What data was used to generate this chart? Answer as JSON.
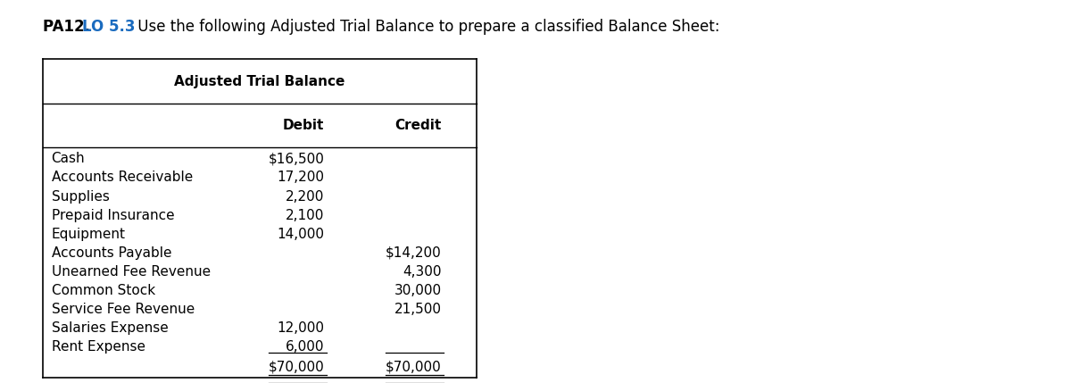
{
  "title_prefix": "PA12. ",
  "title_lo": "LO 5.3",
  "title_suffix": " Use the following Adjusted Trial Balance to prepare a classified Balance Sheet:",
  "table_title": "Adjusted Trial Balance",
  "col_headers": [
    "",
    "Debit",
    "Credit"
  ],
  "rows": [
    {
      "label": "Cash",
      "debit": "$16,500",
      "credit": ""
    },
    {
      "label": "Accounts Receivable",
      "debit": "17,200",
      "credit": ""
    },
    {
      "label": "Supplies",
      "debit": "2,200",
      "credit": ""
    },
    {
      "label": "Prepaid Insurance",
      "debit": "2,100",
      "credit": ""
    },
    {
      "label": "Equipment",
      "debit": "14,000",
      "credit": ""
    },
    {
      "label": "Accounts Payable",
      "debit": "",
      "credit": "$14,200"
    },
    {
      "label": "Unearned Fee Revenue",
      "debit": "",
      "credit": "4,300"
    },
    {
      "label": "Common Stock",
      "debit": "",
      "credit": "30,000"
    },
    {
      "label": "Service Fee Revenue",
      "debit": "",
      "credit": "21,500"
    },
    {
      "label": "Salaries Expense",
      "debit": "12,000",
      "credit": ""
    },
    {
      "label": "Rent Expense",
      "debit": "6,000",
      "credit": ""
    }
  ],
  "total_row": {
    "label": "",
    "debit": "$70,000",
    "credit": "$70,000"
  },
  "lo_color": "#1a6bbf",
  "text_color": "#000000",
  "bg_color": "#ffffff",
  "table_border_color": "#000000",
  "header_font_size": 11,
  "body_font_size": 11,
  "title_font_size": 12
}
